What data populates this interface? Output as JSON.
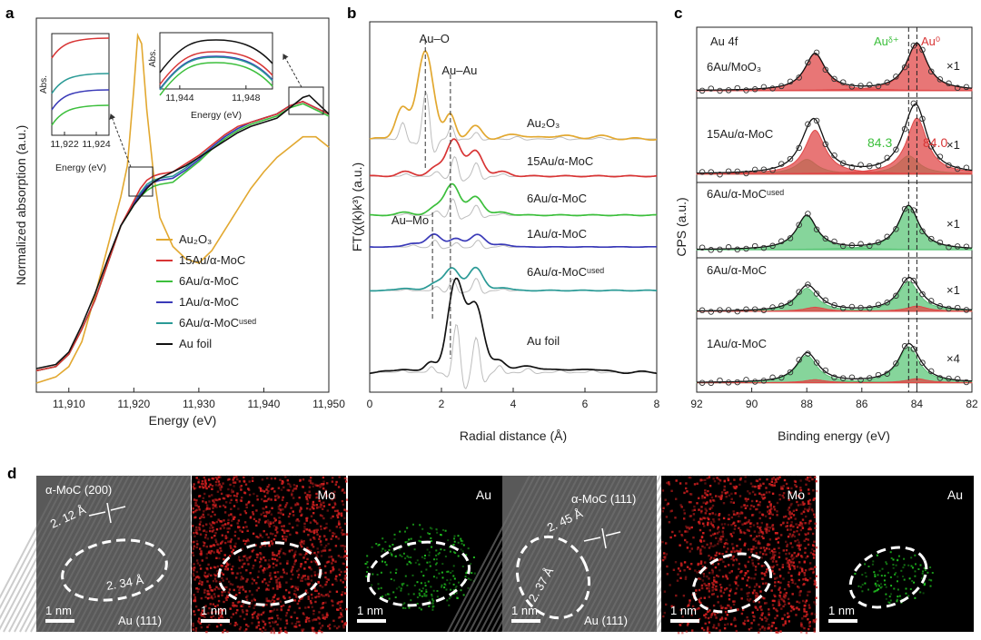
{
  "chart_data": [
    {
      "type": "line",
      "panel_label": "a",
      "xlabel": "Energy (eV)",
      "ylabel": "Normalized absorption (a.u.)",
      "xlim": [
        11905,
        11950
      ],
      "x_ticks": [
        "11,910",
        "11,920",
        "11,930",
        "11,940",
        "11,950"
      ],
      "x_tick_values": [
        11910,
        11920,
        11930,
        11940,
        11950
      ],
      "legend_position": "lower-center",
      "series": [
        {
          "name": "Au₂O₃",
          "color": "#e2a830",
          "points": [
            [
              11905,
              0.0
            ],
            [
              11908,
              0.03
            ],
            [
              11910,
              0.08
            ],
            [
              11912,
              0.2
            ],
            [
              11914,
              0.42
            ],
            [
              11916,
              0.66
            ],
            [
              11918,
              0.9
            ],
            [
              11919,
              1.05
            ],
            [
              11920,
              1.42
            ],
            [
              11920.6,
              1.68
            ],
            [
              11921.2,
              1.64
            ],
            [
              11922,
              1.32
            ],
            [
              11923,
              1.02
            ],
            [
              11924,
              0.8
            ],
            [
              11926,
              0.66
            ],
            [
              11928,
              0.6
            ],
            [
              11930,
              0.58
            ],
            [
              11932,
              0.64
            ],
            [
              11934,
              0.74
            ],
            [
              11936,
              0.84
            ],
            [
              11938,
              0.94
            ],
            [
              11940,
              1.02
            ],
            [
              11942,
              1.09
            ],
            [
              11944,
              1.14
            ],
            [
              11946,
              1.19
            ],
            [
              11948,
              1.19
            ],
            [
              11950,
              1.14
            ]
          ]
        },
        {
          "name": "15Au/α-MoC",
          "color": "#d83535",
          "points": [
            [
              11905,
              0.06
            ],
            [
              11908,
              0.08
            ],
            [
              11910,
              0.14
            ],
            [
              11912,
              0.26
            ],
            [
              11914,
              0.4
            ],
            [
              11916,
              0.58
            ],
            [
              11918,
              0.76
            ],
            [
              11920,
              0.88
            ],
            [
              11921,
              0.94
            ],
            [
              11922,
              0.98
            ],
            [
              11923,
              1.0
            ],
            [
              11924,
              1.01
            ],
            [
              11926,
              1.02
            ],
            [
              11928,
              1.06
            ],
            [
              11930,
              1.1
            ],
            [
              11932,
              1.15
            ],
            [
              11934,
              1.2
            ],
            [
              11936,
              1.24
            ],
            [
              11938,
              1.26
            ],
            [
              11940,
              1.28
            ],
            [
              11942,
              1.3
            ],
            [
              11944,
              1.34
            ],
            [
              11946,
              1.36
            ],
            [
              11948,
              1.33
            ],
            [
              11950,
              1.3
            ]
          ]
        },
        {
          "name": "6Au/α-MoC",
          "color": "#3cbf3c",
          "points": [
            [
              11905,
              0.06
            ],
            [
              11908,
              0.08
            ],
            [
              11910,
              0.14
            ],
            [
              11912,
              0.26
            ],
            [
              11914,
              0.4
            ],
            [
              11916,
              0.58
            ],
            [
              11918,
              0.76
            ],
            [
              11920,
              0.86
            ],
            [
              11921,
              0.9
            ],
            [
              11922,
              0.93
            ],
            [
              11923,
              0.95
            ],
            [
              11924,
              0.96
            ],
            [
              11926,
              0.97
            ],
            [
              11928,
              1.02
            ],
            [
              11930,
              1.07
            ],
            [
              11932,
              1.13
            ],
            [
              11934,
              1.18
            ],
            [
              11936,
              1.22
            ],
            [
              11938,
              1.25
            ],
            [
              11940,
              1.27
            ],
            [
              11942,
              1.29
            ],
            [
              11944,
              1.33
            ],
            [
              11946,
              1.35
            ],
            [
              11948,
              1.32
            ],
            [
              11950,
              1.29
            ]
          ]
        },
        {
          "name": "1Au/α-MoC",
          "color": "#3a3ab8",
          "points": [
            [
              11905,
              0.06
            ],
            [
              11908,
              0.08
            ],
            [
              11910,
              0.14
            ],
            [
              11912,
              0.26
            ],
            [
              11914,
              0.4
            ],
            [
              11916,
              0.58
            ],
            [
              11918,
              0.76
            ],
            [
              11920,
              0.87
            ],
            [
              11921,
              0.91
            ],
            [
              11922,
              0.95
            ],
            [
              11923,
              0.97
            ],
            [
              11924,
              0.98
            ],
            [
              11926,
              0.99
            ],
            [
              11928,
              1.03
            ],
            [
              11930,
              1.08
            ],
            [
              11932,
              1.14
            ],
            [
              11934,
              1.19
            ],
            [
              11936,
              1.23
            ],
            [
              11938,
              1.26
            ],
            [
              11940,
              1.28
            ],
            [
              11942,
              1.3
            ],
            [
              11944,
              1.34
            ],
            [
              11946,
              1.36
            ],
            [
              11948,
              1.33
            ],
            [
              11950,
              1.3
            ]
          ]
        },
        {
          "name": "6Au/α-MoCᵘˢᵉᵈ",
          "color": "#2a9a96",
          "points": [
            [
              11905,
              0.06
            ],
            [
              11908,
              0.08
            ],
            [
              11910,
              0.14
            ],
            [
              11912,
              0.26
            ],
            [
              11914,
              0.4
            ],
            [
              11916,
              0.58
            ],
            [
              11918,
              0.76
            ],
            [
              11920,
              0.87
            ],
            [
              11921,
              0.92
            ],
            [
              11922,
              0.96
            ],
            [
              11923,
              0.98
            ],
            [
              11924,
              0.99
            ],
            [
              11926,
              1.0
            ],
            [
              11928,
              1.04
            ],
            [
              11930,
              1.09
            ],
            [
              11932,
              1.14
            ],
            [
              11934,
              1.19
            ],
            [
              11936,
              1.23
            ],
            [
              11938,
              1.26
            ],
            [
              11940,
              1.28
            ],
            [
              11942,
              1.3
            ],
            [
              11944,
              1.34
            ],
            [
              11946,
              1.36
            ],
            [
              11948,
              1.33
            ],
            [
              11950,
              1.3
            ]
          ]
        },
        {
          "name": "Au foil",
          "color": "#111111",
          "points": [
            [
              11905,
              0.07
            ],
            [
              11908,
              0.09
            ],
            [
              11910,
              0.15
            ],
            [
              11912,
              0.28
            ],
            [
              11914,
              0.43
            ],
            [
              11916,
              0.6
            ],
            [
              11918,
              0.76
            ],
            [
              11920,
              0.86
            ],
            [
              11921,
              0.9
            ],
            [
              11922,
              0.94
            ],
            [
              11923,
              0.97
            ],
            [
              11924,
              0.99
            ],
            [
              11926,
              1.02
            ],
            [
              11928,
              1.05
            ],
            [
              11930,
              1.09
            ],
            [
              11932,
              1.13
            ],
            [
              11934,
              1.17
            ],
            [
              11936,
              1.21
            ],
            [
              11938,
              1.24
            ],
            [
              11940,
              1.26
            ],
            [
              11942,
              1.28
            ],
            [
              11944,
              1.33
            ],
            [
              11946,
              1.38
            ],
            [
              11947,
              1.39
            ],
            [
              11948,
              1.36
            ],
            [
              11950,
              1.3
            ]
          ]
        }
      ],
      "inset_left": {
        "ylabel": "Abs.",
        "xlabel": "Energy (eV)",
        "x_ticks": [
          "11,922",
          "11,924"
        ],
        "x_tick_values": [
          11922,
          11924
        ],
        "xlim": [
          11921.2,
          11924.8
        ]
      },
      "inset_right": {
        "ylabel": "Abs.",
        "xlabel": "Energy (eV)",
        "x_ticks": [
          "11,944",
          "11,948"
        ],
        "x_tick_values": [
          11944,
          11948
        ],
        "xlim": [
          11942.8,
          11949.6
        ]
      }
    },
    {
      "type": "line",
      "panel_label": "b",
      "xlabel": "Radial distance (Å)",
      "ylabel": "FT(χ(k)k³) (a.u.)",
      "xlim": [
        0,
        8
      ],
      "x_ticks": [
        "0",
        "2",
        "4",
        "6",
        "8"
      ],
      "x_tick_values": [
        0,
        2,
        4,
        6,
        8
      ],
      "annotations": [
        {
          "text": "Au–O",
          "x": 1.55
        },
        {
          "text": "Au–Au",
          "x": 2.25
        },
        {
          "text": "Au–Mo",
          "x": 1.75
        }
      ],
      "series": [
        {
          "name": "Au₂O₃",
          "color": "#e2a830"
        },
        {
          "name": "15Au/α-MoC",
          "color": "#d83535"
        },
        {
          "name": "6Au/α-MoC",
          "color": "#3cbf3c"
        },
        {
          "name": "1Au/α-MoC",
          "color": "#3a3ab8"
        },
        {
          "name": "6Au/α-MoCᵘˢᵉᵈ",
          "color": "#2a9a96"
        },
        {
          "name": "Au foil",
          "color": "#111111"
        }
      ]
    },
    {
      "type": "line",
      "panel_label": "c",
      "title": "Au 4f",
      "xlabel": "Binding energy (eV)",
      "ylabel": "CPS (a.u.)",
      "xlim": [
        92,
        82
      ],
      "x_ticks": [
        "92",
        "90",
        "88",
        "86",
        "84",
        "82"
      ],
      "x_tick_values": [
        92,
        90,
        88,
        86,
        84,
        82
      ],
      "label_au_delta": "Auᵟ⁺",
      "label_au_zero": "Au⁰",
      "value_au_delta": "84.3",
      "value_au_zero": "84.0",
      "reference_lines": [
        84.3,
        84.0
      ],
      "subpanels": [
        {
          "name": "6Au/MoO₃",
          "scale": "×1",
          "peaks_red": [
            [
              84.0,
              1.0
            ],
            [
              87.7,
              0.78
            ]
          ],
          "peaks_green": [],
          "baseline": 0.04
        },
        {
          "name": "15Au/α-MoC",
          "scale": "×1",
          "peaks_red": [
            [
              84.0,
              0.92
            ],
            [
              87.7,
              0.72
            ]
          ],
          "peaks_green": [
            [
              84.3,
              0.3
            ],
            [
              88.0,
              0.24
            ]
          ],
          "baseline": 0.05
        },
        {
          "name": "6Au/α-MoCᵘˢᵉᵈ",
          "scale": "×1",
          "peaks_red": [],
          "peaks_green": [
            [
              84.3,
              0.85
            ],
            [
              88.0,
              0.66
            ]
          ],
          "baseline": 0.05
        },
        {
          "name": "6Au/α-MoC",
          "scale": "×1",
          "peaks_red": [
            [
              84.0,
              0.14
            ],
            [
              87.7,
              0.11
            ]
          ],
          "peaks_green": [
            [
              84.3,
              0.8
            ],
            [
              88.0,
              0.62
            ]
          ],
          "baseline": 0.05
        },
        {
          "name": "1Au/α-MoC",
          "scale": "×4",
          "peaks_red": [
            [
              84.0,
              0.08
            ],
            [
              87.7,
              0.06
            ]
          ],
          "peaks_green": [
            [
              84.3,
              0.72
            ],
            [
              88.0,
              0.55
            ]
          ],
          "baseline": 0.08
        }
      ]
    }
  ],
  "panel_d": {
    "panel_label": "d",
    "tiles": [
      {
        "kind": "hrtem",
        "top_label": "α-MoC (200)",
        "spacing_1": "2. 12 Å",
        "spacing_2": "2. 34 Å",
        "bottom_label": "Au (111)",
        "scale_bar": "1 nm"
      },
      {
        "kind": "map",
        "element": "Mo",
        "color": "#d42020",
        "scale_bar": "1 nm"
      },
      {
        "kind": "map",
        "element": "Au",
        "color": "#20c020",
        "scale_bar": "1 nm"
      },
      {
        "kind": "hrtem",
        "top_label": "α-MoC (111)",
        "spacing_1": "2. 45 Å",
        "spacing_2": "2. 37 Å",
        "bottom_label": "Au (111)",
        "scale_bar": "1 nm"
      },
      {
        "kind": "map",
        "element": "Mo",
        "color": "#d42020",
        "scale_bar": "1 nm"
      },
      {
        "kind": "map",
        "element": "Au",
        "color": "#20c020",
        "scale_bar": "1 nm"
      }
    ]
  }
}
